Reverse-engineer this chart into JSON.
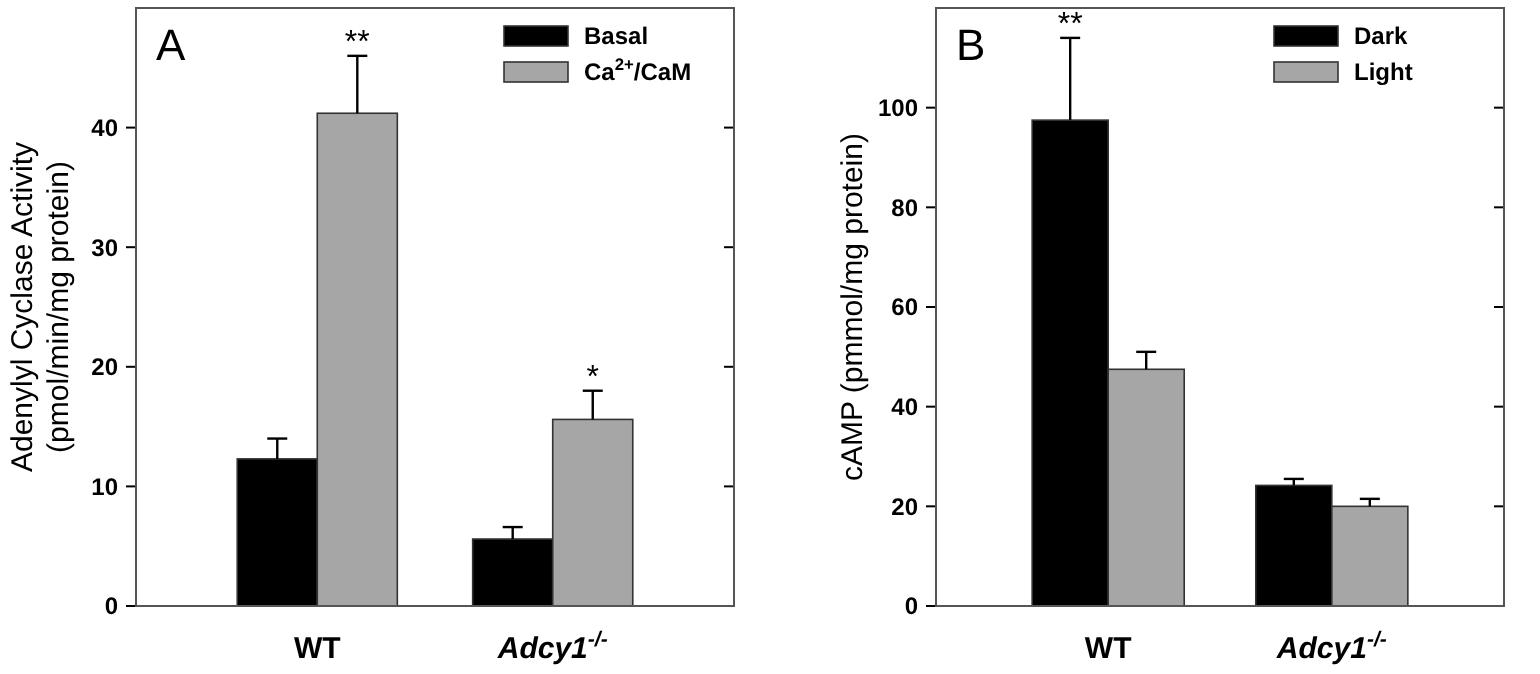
{
  "chart_data": [
    {
      "type": "bar",
      "ylabel": "Adenylyl Cyclase Activity\n(pmol/min/mg protein)",
      "categories": [
        "WT",
        "Adcy1$^{-/-}$"
      ],
      "ylim": [
        0,
        50
      ],
      "yticks": [
        0,
        10,
        20,
        30,
        40
      ],
      "legend": "top right",
      "series": [
        {
          "name": "Basal",
          "color": "#000000",
          "values": [
            12.3,
            5.6
          ],
          "errors": [
            [
              12.3,
              14
            ],
            [
              5.6,
              6.6
            ]
          ]
        },
        {
          "name": "Ca$^{2+}$/CaM",
          "color": "#a6a6a6",
          "values": [
            41.2,
            15.6
          ],
          "errors": [
            [
              41.2,
              46
            ],
            [
              15.6,
              18
            ]
          ]
        }
      ],
      "annotations": [
        "A",
        "**",
        "*"
      ]
    },
    {
      "type": "bar",
      "ylabel": "cAMP  (pmmol/mg protein)",
      "categories": [
        "WT",
        "Adcy1$^{-/-}$"
      ],
      "ylim": [
        0,
        120
      ],
      "yticks": [
        0,
        20,
        40,
        60,
        80,
        100
      ],
      "legend": "top right",
      "series": [
        {
          "name": "Dark",
          "color": "#000000",
          "values": [
            97.5,
            24.2
          ],
          "errors": [
            [
              97.5,
              114
            ],
            [
              24.2,
              25.5
            ]
          ]
        },
        {
          "name": "Light",
          "color": "#a6a6a6",
          "values": [
            47.5,
            20
          ],
          "errors": [
            [
              47.5,
              51
            ],
            [
              20,
              21.5
            ]
          ]
        }
      ],
      "annotations": [
        "B",
        "**"
      ]
    }
  ]
}
